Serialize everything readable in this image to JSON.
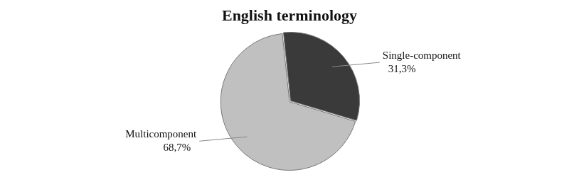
{
  "chart_data": {
    "type": "pie",
    "title": "English terminology",
    "categories": [
      "Single-component",
      "Multicomponent"
    ],
    "values": [
      31.3,
      68.7
    ],
    "value_labels": [
      "31,3%",
      "68,7%"
    ],
    "colors": [
      "#3a3a3a",
      "#c0c0c0"
    ],
    "data_labels": true
  }
}
